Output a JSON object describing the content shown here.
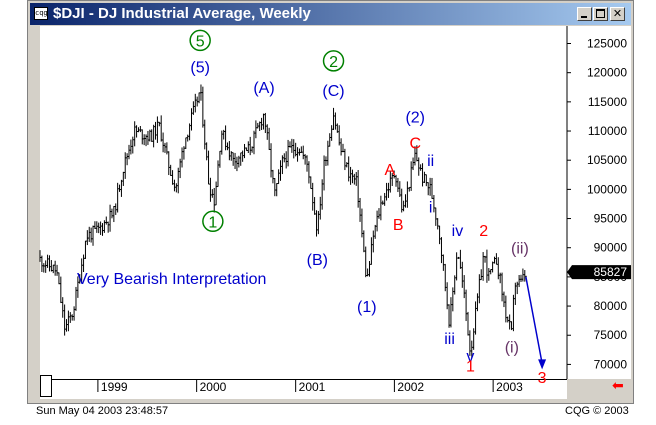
{
  "window": {
    "title": "$DJI - DJ Industrial Average, Weekly",
    "icon_label": "cqg",
    "minimize_icon": "minimize-icon",
    "maximize_icon": "maximize-icon",
    "close_icon": "close-icon",
    "close_glyph": "✕"
  },
  "status_bar": {
    "timestamp": "Sun May 04 2003 23:48:57",
    "copyright": "CQG © 2003"
  },
  "scroll_right_glyph": "⬅",
  "colors": {
    "bars": "#000000",
    "green_labels": "#008000",
    "blue_labels": "#0000cc",
    "red_labels": "#ff0000",
    "purple_labels": "#663366",
    "projection_arrow": "#0000cc",
    "last_price_box": "#000000"
  },
  "chart_data": {
    "type": "ohlc_bar",
    "instrument": "$DJI",
    "interval": "Weekly",
    "ylim": [
      67500,
      128000
    ],
    "y_ticks": [
      70000,
      75000,
      80000,
      85000,
      90000,
      95000,
      100000,
      105000,
      110000,
      115000,
      120000,
      125000
    ],
    "x_ticks": [
      "1999",
      "2000",
      "2001",
      "2002",
      "2003"
    ],
    "xlim": [
      "1998-06-01",
      "2003-10-01"
    ],
    "last_price": "85827",
    "annotation": "Very Bearish Interpretation",
    "price_path": [
      [
        "1998-06-01",
        88000
      ],
      [
        "1998-08-01",
        86000
      ],
      [
        "1998-09-01",
        76000
      ],
      [
        "1998-10-01",
        79000
      ],
      [
        "1998-11-20",
        92000
      ],
      [
        "1999-01-01",
        93000
      ],
      [
        "1999-03-01",
        96000
      ],
      [
        "1999-04-01",
        103000
      ],
      [
        "1999-05-15",
        110000
      ],
      [
        "1999-07-15",
        109000
      ],
      [
        "1999-08-15",
        111000
      ],
      [
        "1999-09-15",
        105000
      ],
      [
        "1999-10-15",
        100000
      ],
      [
        "1999-11-15",
        108000
      ],
      [
        "2000-01-14",
        117000
      ],
      [
        "2000-02-15",
        101000
      ],
      [
        "2000-03-07",
        98000
      ],
      [
        "2000-04-01",
        110000
      ],
      [
        "2000-05-15",
        105000
      ],
      [
        "2000-06-15",
        106000
      ],
      [
        "2000-07-15",
        107000
      ],
      [
        "2000-09-06",
        113000
      ],
      [
        "2000-10-15",
        99000
      ],
      [
        "2000-11-15",
        105000
      ],
      [
        "2000-12-15",
        107000
      ],
      [
        "2001-01-15",
        107000
      ],
      [
        "2001-02-15",
        104000
      ],
      [
        "2001-03-22",
        93000
      ],
      [
        "2001-04-15",
        104000
      ],
      [
        "2001-05-21",
        113000
      ],
      [
        "2001-06-15",
        107000
      ],
      [
        "2001-07-15",
        103000
      ],
      [
        "2001-08-15",
        101000
      ],
      [
        "2001-09-21",
        84000
      ],
      [
        "2001-10-15",
        92000
      ],
      [
        "2001-11-15",
        98000
      ],
      [
        "2002-01-04",
        103000
      ],
      [
        "2002-02-01",
        96000
      ],
      [
        "2002-03-19",
        106000
      ],
      [
        "2002-04-15",
        102000
      ],
      [
        "2002-05-15",
        100000
      ],
      [
        "2002-06-15",
        93000
      ],
      [
        "2002-07-24",
        77000
      ],
      [
        "2002-08-22",
        90000
      ],
      [
        "2002-09-15",
        82000
      ],
      [
        "2002-10-09",
        72000
      ],
      [
        "2002-11-27",
        89000
      ],
      [
        "2002-12-15",
        85000
      ],
      [
        "2003-01-14",
        88000
      ],
      [
        "2003-02-15",
        79000
      ],
      [
        "2003-03-11",
        75000
      ],
      [
        "2003-03-21",
        84000
      ],
      [
        "2003-04-15",
        84000
      ],
      [
        "2003-05-02",
        85827
      ]
    ],
    "projection": {
      "from": [
        "2003-05-02",
        85000
      ],
      "to": [
        "2003-07-01",
        69500
      ]
    },
    "wave_labels": [
      {
        "text": "(5)",
        "date": "2000-01-14",
        "price": 120000,
        "color": "blue"
      },
      {
        "text": "5",
        "date": "2000-01-14",
        "price": 124500,
        "color": "green",
        "circled": true
      },
      {
        "text": "1",
        "date": "2000-03-01",
        "price": 93500,
        "color": "green",
        "circled": true
      },
      {
        "text": "(A)",
        "date": "2000-09-06",
        "price": 116500,
        "color": "blue"
      },
      {
        "text": "2",
        "date": "2001-05-21",
        "price": 121000,
        "color": "green",
        "circled": true
      },
      {
        "text": "(C)",
        "date": "2001-05-21",
        "price": 116000,
        "color": "blue"
      },
      {
        "text": "(B)",
        "date": "2001-03-22",
        "price": 87000,
        "color": "blue"
      },
      {
        "text": "(1)",
        "date": "2001-09-21",
        "price": 79000,
        "color": "blue"
      },
      {
        "text": "A",
        "date": "2001-12-15",
        "price": 102500,
        "color": "red"
      },
      {
        "text": "B",
        "date": "2002-01-15",
        "price": 93000,
        "color": "red"
      },
      {
        "text": "(2)",
        "date": "2002-03-19",
        "price": 111500,
        "color": "blue"
      },
      {
        "text": "C",
        "date": "2002-03-19",
        "price": 107000,
        "color": "red"
      },
      {
        "text": "ii",
        "date": "2002-05-15",
        "price": 104000,
        "color": "blue"
      },
      {
        "text": "i",
        "date": "2002-05-15",
        "price": 96000,
        "color": "blue"
      },
      {
        "text": "iv",
        "date": "2002-08-22",
        "price": 92000,
        "color": "blue"
      },
      {
        "text": "iii",
        "date": "2002-07-24",
        "price": 73500,
        "color": "blue"
      },
      {
        "text": "2",
        "date": "2002-11-27",
        "price": 92000,
        "color": "red"
      },
      {
        "text": "v",
        "date": "2002-10-09",
        "price": 70500,
        "color": "blue"
      },
      {
        "text": "1",
        "date": "2002-10-09",
        "price": 68800,
        "color": "red"
      },
      {
        "text": "(ii)",
        "date": "2003-04-10",
        "price": 89000,
        "color": "purple"
      },
      {
        "text": "(i)",
        "date": "2003-03-11",
        "price": 72000,
        "color": "purple"
      },
      {
        "text": "3",
        "date": "2003-07-01",
        "price": 66800,
        "color": "red"
      }
    ]
  }
}
